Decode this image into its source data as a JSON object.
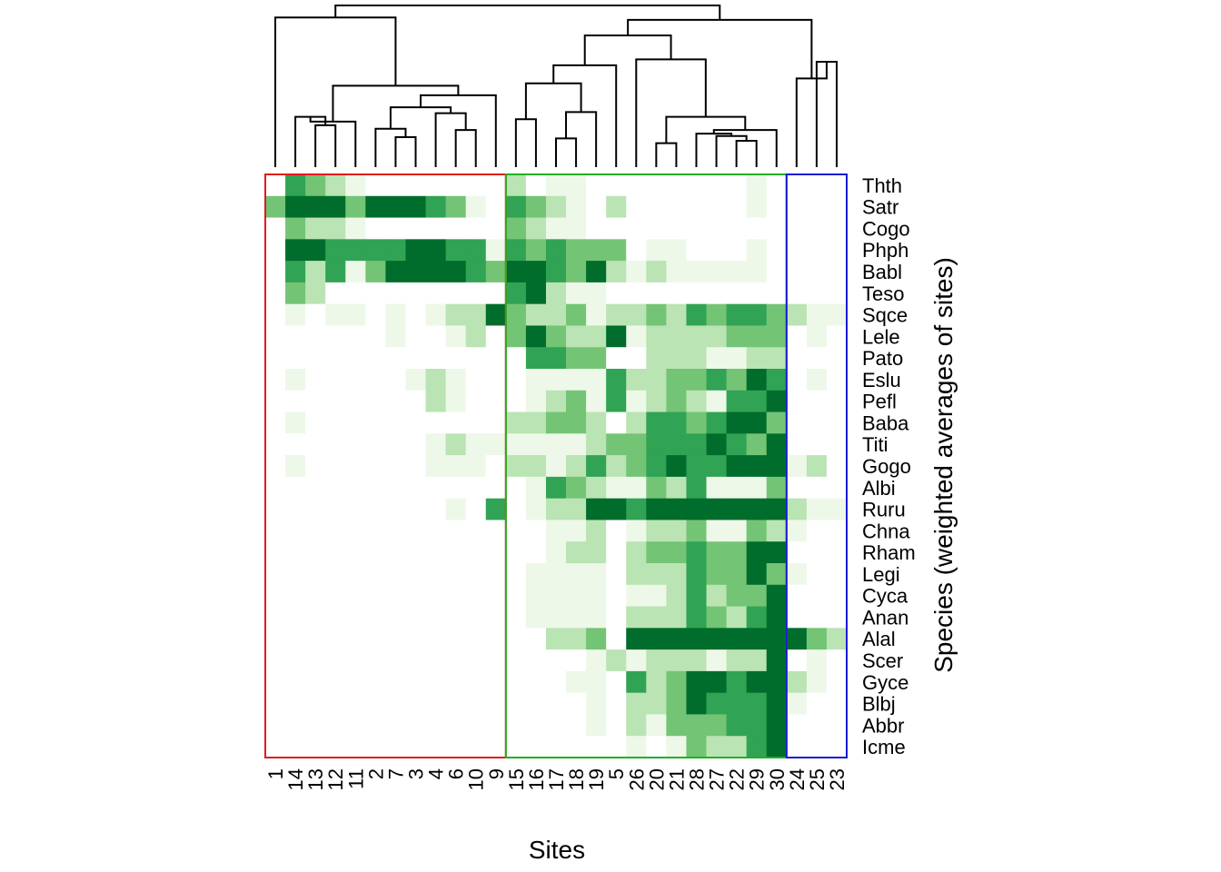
{
  "chart_data": {
    "type": "heatmap",
    "xlabel": "Sites",
    "ylabel": "Species (weighted averages of sites)",
    "x": [
      "1",
      "14",
      "13",
      "12",
      "11",
      "2",
      "7",
      "3",
      "4",
      "6",
      "10",
      "9",
      "15",
      "16",
      "17",
      "18",
      "19",
      "5",
      "26",
      "20",
      "21",
      "28",
      "27",
      "22",
      "29",
      "30",
      "24",
      "25",
      "23"
    ],
    "y": [
      "Thth",
      "Satr",
      "Cogo",
      "Phph",
      "Babl",
      "Teso",
      "Sqce",
      "Lele",
      "Pato",
      "Eslu",
      "Pefl",
      "Baba",
      "Titi",
      "Gogo",
      "Albi",
      "Ruru",
      "Chna",
      "Rham",
      "Legi",
      "Cyca",
      "Anan",
      "Alal",
      "Scer",
      "Gyce",
      "Blbj",
      "Abbr",
      "Icme"
    ],
    "values": [
      [
        0,
        3,
        2,
        1,
        0.5,
        0,
        0,
        0,
        0,
        0,
        0,
        0,
        1,
        0,
        0.5,
        0.5,
        0,
        0,
        0,
        0,
        0,
        0,
        0,
        0,
        0.5,
        0,
        0,
        0,
        0
      ],
      [
        2,
        4,
        4,
        4,
        2,
        4,
        4,
        4,
        3,
        2,
        0.5,
        0,
        3,
        2,
        1,
        0.5,
        0,
        1,
        0,
        0,
        0,
        0,
        0,
        0,
        0.5,
        0,
        0,
        0,
        0
      ],
      [
        0,
        2,
        1,
        1,
        0.5,
        0,
        0,
        0,
        0,
        0,
        0,
        0,
        2,
        1,
        0.5,
        0.5,
        0,
        0,
        0,
        0,
        0,
        0,
        0,
        0,
        0,
        0,
        0,
        0,
        0
      ],
      [
        0,
        4,
        4,
        3,
        3,
        3,
        3,
        4,
        4,
        3,
        3,
        0.5,
        3,
        2,
        3,
        2,
        2,
        2,
        0,
        0.5,
        0.5,
        0,
        0,
        0,
        0.5,
        0,
        0,
        0,
        0
      ],
      [
        0,
        3,
        1,
        3,
        0.5,
        2,
        4,
        4,
        4,
        4,
        3,
        2,
        4,
        4,
        3,
        2,
        4,
        1,
        0.5,
        1,
        0.5,
        0.5,
        0.5,
        0.5,
        0.5,
        0,
        0,
        0,
        0
      ],
      [
        0,
        2,
        1,
        0,
        0,
        0,
        0,
        0,
        0,
        0,
        0,
        0,
        3,
        4,
        1,
        0.5,
        0.5,
        0,
        0,
        0,
        0,
        0,
        0,
        0,
        0,
        0,
        0,
        0,
        0
      ],
      [
        0,
        0.5,
        0,
        0.5,
        0.5,
        0,
        0.5,
        0,
        0.5,
        1,
        1,
        4,
        2,
        1,
        1,
        2,
        0.5,
        1,
        1,
        2,
        1,
        3,
        2,
        3,
        3,
        2,
        1,
        0.5,
        0.5
      ],
      [
        0,
        0,
        0,
        0,
        0,
        0,
        0.5,
        0,
        0,
        0.5,
        1,
        0,
        2,
        4,
        2,
        1,
        1,
        4,
        0.5,
        1,
        1,
        1,
        1,
        2,
        2,
        2,
        0,
        0.5,
        0
      ],
      [
        0,
        0,
        0,
        0,
        0,
        0,
        0,
        0,
        0,
        0,
        0,
        0,
        0,
        3,
        3,
        2,
        2,
        0,
        0,
        1,
        1,
        1,
        0.5,
        0.5,
        1,
        1,
        0,
        0,
        0
      ],
      [
        0,
        0.5,
        0,
        0,
        0,
        0,
        0,
        0.5,
        1,
        0.5,
        0,
        0,
        0,
        0.5,
        0.5,
        0.5,
        0.5,
        3,
        1,
        1,
        2,
        2,
        3,
        2,
        4,
        3,
        0,
        0.5,
        0
      ],
      [
        0,
        0,
        0,
        0,
        0,
        0,
        0,
        0,
        1,
        0.5,
        0,
        0,
        0,
        0.5,
        1,
        2,
        0.5,
        3,
        0.5,
        1,
        2,
        1,
        0.5,
        3,
        3,
        4,
        0,
        0,
        0
      ],
      [
        0,
        0.5,
        0,
        0,
        0,
        0,
        0,
        0,
        0,
        0,
        0,
        0,
        1,
        1,
        2,
        2,
        1,
        0,
        1,
        3,
        3,
        2,
        3,
        4,
        4,
        2,
        0,
        0,
        0
      ],
      [
        0,
        0,
        0,
        0,
        0,
        0,
        0,
        0,
        0.5,
        1,
        0.5,
        0.5,
        0.5,
        0.5,
        0.5,
        0.5,
        1,
        2,
        2,
        3,
        3,
        3,
        4,
        3,
        2,
        4,
        0,
        0,
        0
      ],
      [
        0,
        0.5,
        0,
        0,
        0,
        0,
        0,
        0,
        0.5,
        0.5,
        0.5,
        0,
        1,
        1,
        0.5,
        1,
        3,
        1,
        2,
        3,
        4,
        3,
        3,
        4,
        4,
        4,
        0.5,
        1,
        0
      ],
      [
        0,
        0,
        0,
        0,
        0,
        0,
        0,
        0,
        0,
        0,
        0,
        0,
        0,
        0.5,
        3,
        2,
        1,
        0.5,
        0.5,
        2,
        1,
        3,
        0.5,
        0.5,
        0.5,
        2,
        0,
        0,
        0
      ],
      [
        0,
        0,
        0,
        0,
        0,
        0,
        0,
        0,
        0,
        0.5,
        0,
        3,
        0,
        0.5,
        1,
        1,
        4,
        4,
        3,
        4,
        4,
        4,
        4,
        4,
        4,
        4,
        1,
        0.5,
        0.5
      ],
      [
        0,
        0,
        0,
        0,
        0,
        0,
        0,
        0,
        0,
        0,
        0,
        0,
        0,
        0,
        0.5,
        0.5,
        1,
        0,
        0.5,
        1,
        1,
        2,
        0.5,
        0.5,
        2,
        1,
        0.5,
        0,
        0
      ],
      [
        0,
        0,
        0,
        0,
        0,
        0,
        0,
        0,
        0,
        0,
        0,
        0,
        0,
        0,
        0.5,
        1,
        1,
        0,
        1,
        2,
        2,
        3,
        2,
        2,
        4,
        4,
        0,
        0,
        0
      ],
      [
        0,
        0,
        0,
        0,
        0,
        0,
        0,
        0,
        0,
        0,
        0,
        0,
        0,
        0.5,
        0.5,
        0.5,
        0.5,
        0,
        1,
        1,
        1,
        3,
        2,
        2,
        4,
        2,
        0.5,
        0,
        0
      ],
      [
        0,
        0,
        0,
        0,
        0,
        0,
        0,
        0,
        0,
        0,
        0,
        0,
        0,
        0.5,
        0.5,
        0.5,
        0.5,
        0,
        0.5,
        0.5,
        1,
        3,
        1,
        2,
        2,
        4,
        0,
        0,
        0
      ],
      [
        0,
        0,
        0,
        0,
        0,
        0,
        0,
        0,
        0,
        0,
        0,
        0,
        0,
        0.5,
        0.5,
        0.5,
        0.5,
        0,
        1,
        1,
        1,
        3,
        2,
        1,
        3,
        4,
        0,
        0,
        0
      ],
      [
        0,
        0,
        0,
        0,
        0,
        0,
        0,
        0,
        0,
        0,
        0,
        0,
        0,
        0,
        1,
        1,
        2,
        0,
        4,
        4,
        4,
        4,
        4,
        4,
        4,
        4,
        4,
        2,
        1
      ],
      [
        0,
        0,
        0,
        0,
        0,
        0,
        0,
        0,
        0,
        0,
        0,
        0,
        0,
        0,
        0,
        0,
        0.5,
        1,
        0.5,
        1,
        1,
        1,
        0.5,
        1,
        1,
        4,
        0,
        0.5,
        0
      ],
      [
        0,
        0,
        0,
        0,
        0,
        0,
        0,
        0,
        0,
        0,
        0,
        0,
        0,
        0,
        0,
        0.5,
        0.5,
        0,
        3,
        1,
        2,
        4,
        4,
        3,
        4,
        4,
        1,
        0.5,
        0
      ],
      [
        0,
        0,
        0,
        0,
        0,
        0,
        0,
        0,
        0,
        0,
        0,
        0,
        0,
        0,
        0,
        0,
        0.5,
        0,
        1,
        1,
        2,
        4,
        3,
        3,
        3,
        4,
        0.5,
        0,
        0
      ],
      [
        0,
        0,
        0,
        0,
        0,
        0,
        0,
        0,
        0,
        0,
        0,
        0,
        0,
        0,
        0,
        0,
        0.5,
        0,
        1,
        0.5,
        2,
        2,
        2,
        3,
        3,
        4,
        0,
        0,
        0
      ],
      [
        0,
        0,
        0,
        0,
        0,
        0,
        0,
        0,
        0,
        0,
        0,
        0,
        0,
        0,
        0,
        0,
        0,
        0,
        0.5,
        0,
        0.5,
        2,
        1,
        1,
        3,
        4,
        0,
        0,
        0
      ]
    ],
    "clusters": [
      {
        "sites": [
          "1",
          "14",
          "13",
          "12",
          "11",
          "2",
          "7",
          "3",
          "4",
          "6",
          "10",
          "9"
        ],
        "color": "#e31a1c"
      },
      {
        "sites": [
          "15",
          "16",
          "17",
          "18",
          "19",
          "5",
          "26",
          "20",
          "21",
          "28",
          "27",
          "22",
          "29",
          "30"
        ],
        "color": "#22b022"
      },
      {
        "sites": [
          "24",
          "25",
          "23"
        ],
        "color": "#1a1ad8"
      }
    ],
    "dendrogram_merges": [
      [
        [
          "13"
        ],
        [
          "12"
        ]
      ],
      [
        [
          "14"
        ],
        [
          "13",
          "12"
        ]
      ],
      [
        [
          "14",
          "13",
          "12"
        ],
        [
          "11"
        ]
      ],
      [
        [
          "7"
        ],
        [
          "3"
        ]
      ],
      [
        [
          "2"
        ],
        [
          "7",
          "3"
        ]
      ],
      [
        [
          "6"
        ],
        [
          "10"
        ]
      ],
      [
        [
          "4"
        ],
        [
          "6",
          "10"
        ]
      ],
      [
        [
          "2",
          "7",
          "3"
        ],
        [
          "4",
          "6",
          "10"
        ]
      ],
      [
        [
          "2",
          "7",
          "3",
          "4",
          "6",
          "10"
        ],
        [
          "9"
        ]
      ],
      [
        [
          "14",
          "13",
          "12",
          "11"
        ],
        [
          "2",
          "7",
          "3",
          "4",
          "6",
          "10",
          "9"
        ]
      ],
      [
        [
          "1"
        ],
        [
          "14",
          "13",
          "12",
          "11",
          "2",
          "7",
          "3",
          "4",
          "6",
          "10",
          "9"
        ]
      ],
      [
        [
          "15"
        ],
        [
          "16"
        ]
      ],
      [
        [
          "17"
        ],
        [
          "18"
        ]
      ],
      [
        [
          "17",
          "18"
        ],
        [
          "19"
        ]
      ],
      [
        [
          "15",
          "16"
        ],
        [
          "17",
          "18",
          "19"
        ]
      ],
      [
        [
          "15",
          "16",
          "17",
          "18",
          "19"
        ],
        [
          "5"
        ]
      ],
      [
        [
          "20"
        ],
        [
          "21"
        ]
      ],
      [
        [
          "22"
        ],
        [
          "29"
        ]
      ],
      [
        [
          "27"
        ],
        [
          "22",
          "29"
        ]
      ],
      [
        [
          "28"
        ],
        [
          "27",
          "22",
          "29"
        ]
      ],
      [
        [
          "28",
          "27",
          "22",
          "29"
        ],
        [
          "30"
        ]
      ],
      [
        [
          "20",
          "21"
        ],
        [
          "28",
          "27",
          "22",
          "29",
          "30"
        ]
      ],
      [
        [
          "26"
        ],
        [
          "20",
          "21",
          "28",
          "27",
          "22",
          "29",
          "30"
        ]
      ],
      [
        [
          "15",
          "16",
          "17",
          "18",
          "19",
          "5"
        ],
        [
          "26",
          "20",
          "21",
          "28",
          "27",
          "22",
          "29",
          "30"
        ]
      ],
      [
        [
          "25"
        ],
        [
          "23"
        ]
      ],
      [
        [
          "24"
        ],
        [
          "25",
          "23"
        ]
      ],
      [
        [
          "15",
          "16",
          "17",
          "18",
          "19",
          "5",
          "26",
          "20",
          "21",
          "28",
          "27",
          "22",
          "29",
          "30"
        ],
        [
          "24",
          "25",
          "23"
        ]
      ],
      [
        [
          "1",
          "14",
          "13",
          "12",
          "11",
          "2",
          "7",
          "3",
          "4",
          "6",
          "10",
          "9"
        ],
        [
          "15",
          "16",
          "17",
          "18",
          "19",
          "5",
          "26",
          "20",
          "21",
          "28",
          "27",
          "22",
          "29",
          "30",
          "24",
          "25",
          "23"
        ]
      ]
    ],
    "merge_heights": [
      0.35,
      0.42,
      0.38,
      0.25,
      0.32,
      0.31,
      0.45,
      0.5,
      0.6,
      0.68,
      1.25,
      0.4,
      0.24,
      0.46,
      0.7,
      0.85,
      0.2,
      0.22,
      0.26,
      0.28,
      0.31,
      0.42,
      0.9,
      1.1,
      0.88,
      0.74,
      1.23,
      1.35
    ],
    "palette": [
      "#ffffff",
      "#edf8e9",
      "#bae4b3",
      "#74c476",
      "#31a354",
      "#006d2c"
    ]
  }
}
